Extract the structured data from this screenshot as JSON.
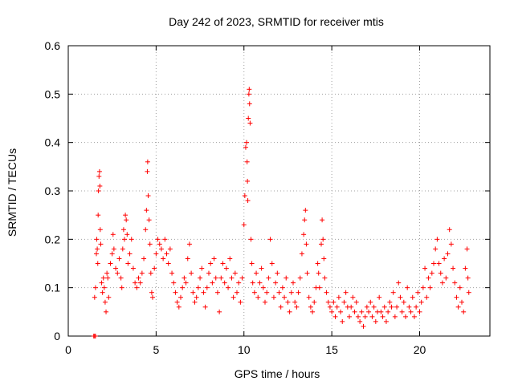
{
  "chart_data": {
    "type": "scatter",
    "title": "Day 242 of 2023, SRMTID for receiver mtis",
    "xlabel": "GPS time / hours",
    "ylabel": "SRMTID / TECUs",
    "xlim": [
      0,
      24
    ],
    "ylim": [
      0,
      0.6
    ],
    "xticks": [
      "0",
      "5",
      "10",
      "15",
      "20"
    ],
    "yticks": [
      "0",
      "0.1",
      "0.2",
      "0.3",
      "0.4",
      "0.5",
      "0.6"
    ],
    "xtick_values": [
      0,
      5,
      10,
      15,
      20
    ],
    "ytick_values": [
      0,
      0.1,
      0.2,
      0.3,
      0.4,
      0.5,
      0.6
    ],
    "grid": true,
    "marker": "+",
    "marker_color": "#ff0000",
    "baseline_points": [
      [
        1.45,
        0.0
      ],
      [
        1.5,
        0.0
      ],
      [
        1.55,
        0.0
      ]
    ],
    "series": [
      {
        "name": "SRMTID",
        "points": [
          [
            1.5,
            0.08
          ],
          [
            1.55,
            0.1
          ],
          [
            1.6,
            0.17
          ],
          [
            1.62,
            0.2
          ],
          [
            1.65,
            0.18
          ],
          [
            1.68,
            0.15
          ],
          [
            1.7,
            0.25
          ],
          [
            1.72,
            0.3
          ],
          [
            1.75,
            0.33
          ],
          [
            1.78,
            0.34
          ],
          [
            1.8,
            0.31
          ],
          [
            1.82,
            0.22
          ],
          [
            1.85,
            0.19
          ],
          [
            1.9,
            0.11
          ],
          [
            1.95,
            0.09
          ],
          [
            2.0,
            0.12
          ],
          [
            2.05,
            0.1
          ],
          [
            2.1,
            0.07
          ],
          [
            2.15,
            0.05
          ],
          [
            2.2,
            0.13
          ],
          [
            2.25,
            0.12
          ],
          [
            2.3,
            0.08
          ],
          [
            2.4,
            0.15
          ],
          [
            2.5,
            0.17
          ],
          [
            2.55,
            0.21
          ],
          [
            2.6,
            0.18
          ],
          [
            2.7,
            0.14
          ],
          [
            2.8,
            0.13
          ],
          [
            2.9,
            0.16
          ],
          [
            3.0,
            0.12
          ],
          [
            3.05,
            0.1
          ],
          [
            3.1,
            0.18
          ],
          [
            3.15,
            0.22
          ],
          [
            3.2,
            0.2
          ],
          [
            3.25,
            0.25
          ],
          [
            3.3,
            0.24
          ],
          [
            3.35,
            0.21
          ],
          [
            3.4,
            0.15
          ],
          [
            3.5,
            0.17
          ],
          [
            3.6,
            0.2
          ],
          [
            3.7,
            0.14
          ],
          [
            3.8,
            0.11
          ],
          [
            3.9,
            0.1
          ],
          [
            4.0,
            0.12
          ],
          [
            4.1,
            0.11
          ],
          [
            4.2,
            0.13
          ],
          [
            4.3,
            0.16
          ],
          [
            4.4,
            0.22
          ],
          [
            4.45,
            0.26
          ],
          [
            4.5,
            0.34
          ],
          [
            4.52,
            0.36
          ],
          [
            4.55,
            0.29
          ],
          [
            4.6,
            0.24
          ],
          [
            4.65,
            0.19
          ],
          [
            4.7,
            0.13
          ],
          [
            4.75,
            0.09
          ],
          [
            4.8,
            0.08
          ],
          [
            4.9,
            0.14
          ],
          [
            5.0,
            0.17
          ],
          [
            5.1,
            0.2
          ],
          [
            5.2,
            0.19
          ],
          [
            5.3,
            0.18
          ],
          [
            5.4,
            0.16
          ],
          [
            5.5,
            0.2
          ],
          [
            5.6,
            0.17
          ],
          [
            5.7,
            0.15
          ],
          [
            5.8,
            0.18
          ],
          [
            5.9,
            0.13
          ],
          [
            6.0,
            0.11
          ],
          [
            6.1,
            0.09
          ],
          [
            6.2,
            0.07
          ],
          [
            6.3,
            0.06
          ],
          [
            6.4,
            0.08
          ],
          [
            6.5,
            0.1
          ],
          [
            6.6,
            0.12
          ],
          [
            6.7,
            0.11
          ],
          [
            6.8,
            0.16
          ],
          [
            6.9,
            0.19
          ],
          [
            7.0,
            0.13
          ],
          [
            7.1,
            0.09
          ],
          [
            7.2,
            0.07
          ],
          [
            7.3,
            0.08
          ],
          [
            7.4,
            0.1
          ],
          [
            7.5,
            0.12
          ],
          [
            7.6,
            0.14
          ],
          [
            7.7,
            0.09
          ],
          [
            7.8,
            0.06
          ],
          [
            7.9,
            0.1
          ],
          [
            8.0,
            0.13
          ],
          [
            8.1,
            0.15
          ],
          [
            8.2,
            0.11
          ],
          [
            8.3,
            0.16
          ],
          [
            8.4,
            0.12
          ],
          [
            8.5,
            0.09
          ],
          [
            8.6,
            0.05
          ],
          [
            8.7,
            0.12
          ],
          [
            8.8,
            0.15
          ],
          [
            8.9,
            0.11
          ],
          [
            9.0,
            0.14
          ],
          [
            9.1,
            0.1
          ],
          [
            9.2,
            0.16
          ],
          [
            9.3,
            0.12
          ],
          [
            9.4,
            0.08
          ],
          [
            9.5,
            0.13
          ],
          [
            9.6,
            0.09
          ],
          [
            9.7,
            0.11
          ],
          [
            9.8,
            0.07
          ],
          [
            9.9,
            0.12
          ],
          [
            10.0,
            0.23
          ],
          [
            10.05,
            0.29
          ],
          [
            10.1,
            0.39
          ],
          [
            10.15,
            0.4
          ],
          [
            10.18,
            0.36
          ],
          [
            10.2,
            0.32
          ],
          [
            10.22,
            0.28
          ],
          [
            10.25,
            0.45
          ],
          [
            10.28,
            0.5
          ],
          [
            10.3,
            0.51
          ],
          [
            10.32,
            0.48
          ],
          [
            10.35,
            0.44
          ],
          [
            10.4,
            0.2
          ],
          [
            10.45,
            0.15
          ],
          [
            10.5,
            0.11
          ],
          [
            10.6,
            0.09
          ],
          [
            10.7,
            0.13
          ],
          [
            10.8,
            0.08
          ],
          [
            10.9,
            0.11
          ],
          [
            11.0,
            0.14
          ],
          [
            11.1,
            0.1
          ],
          [
            11.2,
            0.07
          ],
          [
            11.3,
            0.09
          ],
          [
            11.4,
            0.12
          ],
          [
            11.5,
            0.2
          ],
          [
            11.6,
            0.15
          ],
          [
            11.7,
            0.08
          ],
          [
            11.8,
            0.11
          ],
          [
            11.9,
            0.13
          ],
          [
            12.0,
            0.09
          ],
          [
            12.1,
            0.06
          ],
          [
            12.2,
            0.1
          ],
          [
            12.3,
            0.08
          ],
          [
            12.4,
            0.12
          ],
          [
            12.5,
            0.07
          ],
          [
            12.6,
            0.05
          ],
          [
            12.7,
            0.09
          ],
          [
            12.8,
            0.11
          ],
          [
            12.9,
            0.07
          ],
          [
            13.0,
            0.06
          ],
          [
            13.1,
            0.09
          ],
          [
            13.2,
            0.12
          ],
          [
            13.3,
            0.17
          ],
          [
            13.4,
            0.21
          ],
          [
            13.45,
            0.24
          ],
          [
            13.5,
            0.26
          ],
          [
            13.55,
            0.19
          ],
          [
            13.6,
            0.13
          ],
          [
            13.7,
            0.08
          ],
          [
            13.8,
            0.06
          ],
          [
            13.9,
            0.05
          ],
          [
            14.0,
            0.07
          ],
          [
            14.1,
            0.1
          ],
          [
            14.2,
            0.15
          ],
          [
            14.25,
            0.13
          ],
          [
            14.3,
            0.1
          ],
          [
            14.4,
            0.19
          ],
          [
            14.45,
            0.24
          ],
          [
            14.5,
            0.2
          ],
          [
            14.55,
            0.16
          ],
          [
            14.6,
            0.12
          ],
          [
            14.7,
            0.09
          ],
          [
            14.8,
            0.07
          ],
          [
            14.9,
            0.06
          ],
          [
            15.0,
            0.05
          ],
          [
            15.1,
            0.07
          ],
          [
            15.2,
            0.04
          ],
          [
            15.3,
            0.06
          ],
          [
            15.4,
            0.08
          ],
          [
            15.5,
            0.05
          ],
          [
            15.6,
            0.03
          ],
          [
            15.7,
            0.07
          ],
          [
            15.8,
            0.09
          ],
          [
            15.9,
            0.06
          ],
          [
            16.0,
            0.04
          ],
          [
            16.1,
            0.06
          ],
          [
            16.2,
            0.08
          ],
          [
            16.3,
            0.05
          ],
          [
            16.4,
            0.07
          ],
          [
            16.5,
            0.04
          ],
          [
            16.6,
            0.03
          ],
          [
            16.7,
            0.05
          ],
          [
            16.8,
            0.02
          ],
          [
            16.9,
            0.04
          ],
          [
            17.0,
            0.06
          ],
          [
            17.1,
            0.05
          ],
          [
            17.2,
            0.07
          ],
          [
            17.3,
            0.04
          ],
          [
            17.4,
            0.06
          ],
          [
            17.5,
            0.03
          ],
          [
            17.6,
            0.05
          ],
          [
            17.7,
            0.08
          ],
          [
            17.8,
            0.05
          ],
          [
            17.9,
            0.04
          ],
          [
            18.0,
            0.06
          ],
          [
            18.1,
            0.03
          ],
          [
            18.2,
            0.05
          ],
          [
            18.3,
            0.07
          ],
          [
            18.4,
            0.06
          ],
          [
            18.5,
            0.09
          ],
          [
            18.6,
            0.04
          ],
          [
            18.7,
            0.06
          ],
          [
            18.8,
            0.11
          ],
          [
            18.9,
            0.08
          ],
          [
            19.0,
            0.05
          ],
          [
            19.1,
            0.07
          ],
          [
            19.2,
            0.04
          ],
          [
            19.3,
            0.1
          ],
          [
            19.4,
            0.06
          ],
          [
            19.5,
            0.05
          ],
          [
            19.6,
            0.08
          ],
          [
            19.7,
            0.04
          ],
          [
            19.8,
            0.06
          ],
          [
            19.9,
            0.09
          ],
          [
            20.0,
            0.05
          ],
          [
            20.1,
            0.07
          ],
          [
            20.2,
            0.1
          ],
          [
            20.3,
            0.14
          ],
          [
            20.4,
            0.08
          ],
          [
            20.5,
            0.12
          ],
          [
            20.6,
            0.1
          ],
          [
            20.7,
            0.13
          ],
          [
            20.8,
            0.15
          ],
          [
            20.9,
            0.18
          ],
          [
            21.0,
            0.2
          ],
          [
            21.1,
            0.15
          ],
          [
            21.2,
            0.13
          ],
          [
            21.3,
            0.11
          ],
          [
            21.4,
            0.16
          ],
          [
            21.5,
            0.12
          ],
          [
            21.6,
            0.17
          ],
          [
            21.7,
            0.22
          ],
          [
            21.8,
            0.19
          ],
          [
            21.9,
            0.14
          ],
          [
            22.0,
            0.11
          ],
          [
            22.1,
            0.08
          ],
          [
            22.2,
            0.06
          ],
          [
            22.3,
            0.1
          ],
          [
            22.4,
            0.07
          ],
          [
            22.5,
            0.05
          ],
          [
            22.6,
            0.14
          ],
          [
            22.7,
            0.18
          ],
          [
            22.75,
            0.12
          ],
          [
            22.8,
            0.09
          ]
        ]
      }
    ]
  }
}
